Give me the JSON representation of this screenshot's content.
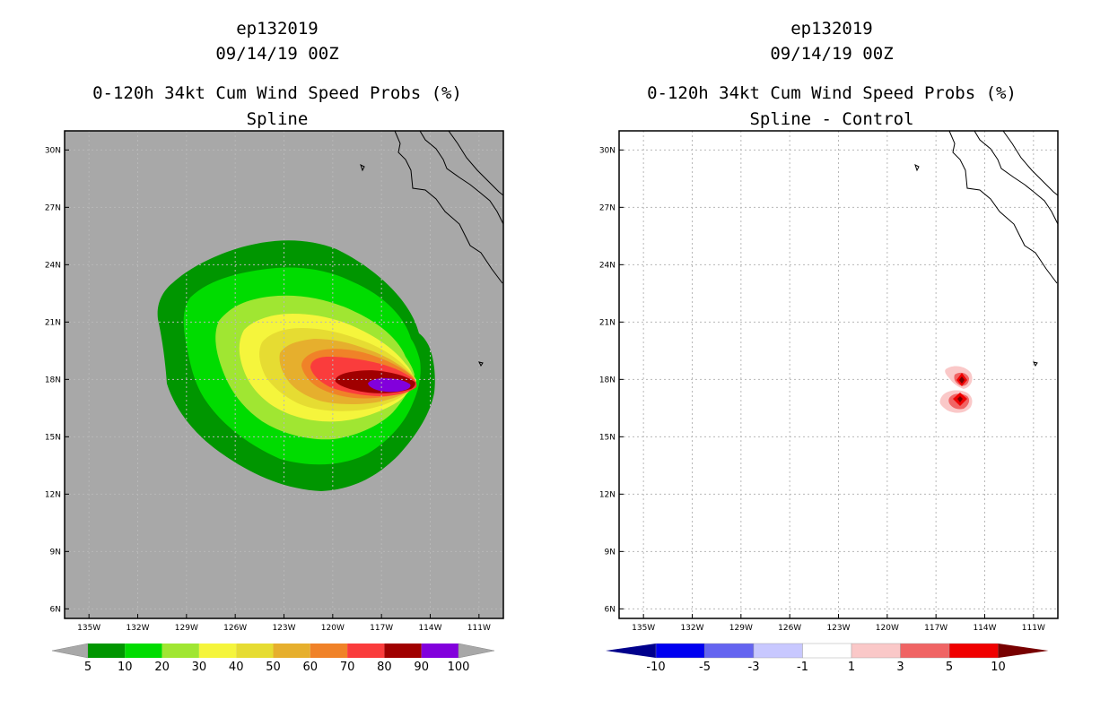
{
  "colors": {
    "land_sea_gray": "#a8a8a8",
    "left_levels": [
      "#009600",
      "#00dc00",
      "#a0e632",
      "#f5f53c",
      "#e6dc32",
      "#e6af2d",
      "#f08228",
      "#fa3c3c",
      "#a00000",
      "#8200dc"
    ],
    "right_levels": [
      "#00008c",
      "#0000f0",
      "#6464f0",
      "#c8c8ff",
      "#ffffff",
      "#fac8c8",
      "#f06464",
      "#f00000",
      "#780000"
    ]
  },
  "chart_data": [
    {
      "type": "heatmap",
      "title": [
        "ep132019",
        "09/14/19 00Z",
        "0-120h 34kt Cum Wind Speed Probs (%)",
        "Spline"
      ],
      "xlabel": "",
      "ylabel": "",
      "x_ticks": [
        "135W",
        "132W",
        "129W",
        "126W",
        "123W",
        "120W",
        "117W",
        "114W",
        "111W"
      ],
      "y_ticks": [
        "30N",
        "27N",
        "24N",
        "21N",
        "18N",
        "15N",
        "12N",
        "9N",
        "6N"
      ],
      "xlim": [
        -136.5,
        -109.5
      ],
      "ylim": [
        5.5,
        31
      ],
      "grid": true,
      "colorbar_labels": [
        "5",
        "10",
        "20",
        "30",
        "40",
        "50",
        "60",
        "70",
        "80",
        "90",
        "100"
      ],
      "storm_center": {
        "lon": -115.8,
        "lat": 17.6
      },
      "max_value": 100
    },
    {
      "type": "heatmap",
      "title": [
        "ep132019",
        "09/14/19 00Z",
        "0-120h 34kt Cum Wind Speed Probs (%)",
        "Spline - Control"
      ],
      "xlabel": "",
      "ylabel": "",
      "x_ticks": [
        "135W",
        "132W",
        "129W",
        "126W",
        "123W",
        "120W",
        "117W",
        "114W",
        "111W"
      ],
      "y_ticks": [
        "30N",
        "27N",
        "24N",
        "21N",
        "18N",
        "15N",
        "12N",
        "9N",
        "6N"
      ],
      "xlim": [
        -136.5,
        -109.5
      ],
      "ylim": [
        5.5,
        31
      ],
      "grid": true,
      "colorbar_labels": [
        "-10",
        "-5",
        "-3",
        "-1",
        "1",
        "3",
        "5",
        "10"
      ],
      "difference_maxima": [
        {
          "lon": -115.6,
          "lat": 18.0,
          "value": 10
        },
        {
          "lon": -115.8,
          "lat": 16.9,
          "value": 10
        }
      ]
    }
  ]
}
